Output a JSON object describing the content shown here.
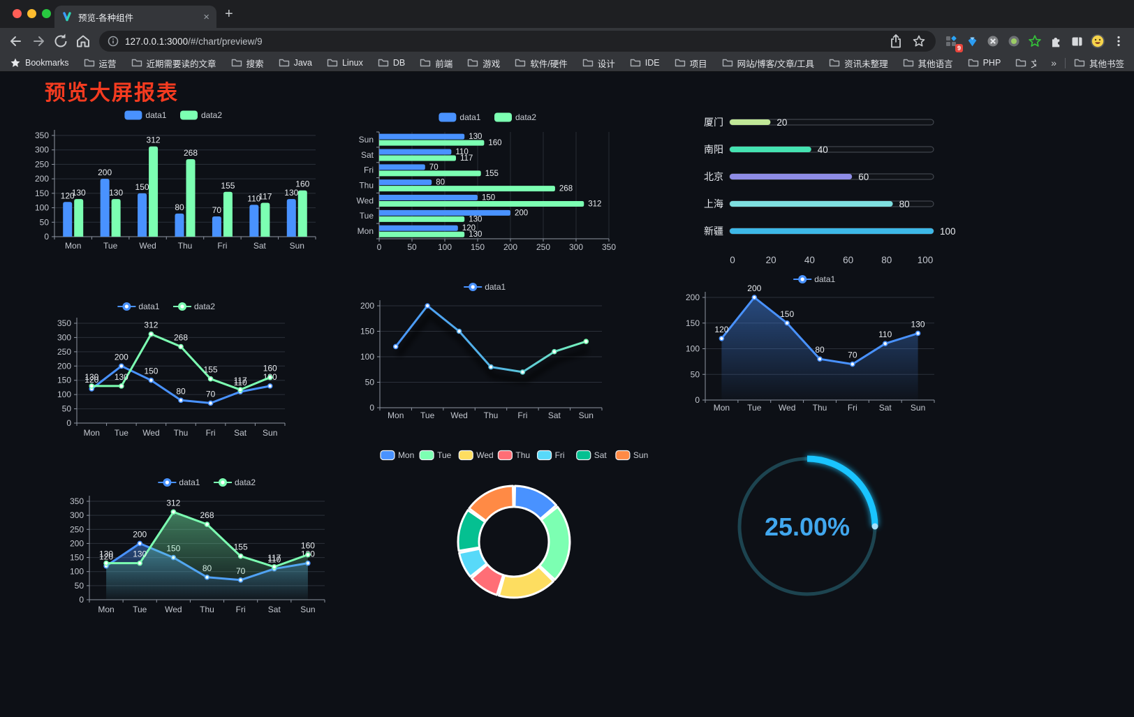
{
  "browser": {
    "tab": {
      "title": "预览-各种组件",
      "close_label": "×",
      "new_tab_label": "+"
    },
    "url": {
      "host": "127.0.0.1:3000",
      "path": "/#/chart/preview/9"
    },
    "extension_badge": "9",
    "bookmarks_bar": {
      "root_label": "Bookmarks",
      "folders": [
        "运营",
        "近期需要读的文章",
        "搜索",
        "Java",
        "Linux",
        "DB",
        "前端",
        "游戏",
        "软件/硬件",
        "设计",
        "IDE",
        "项目",
        "网站/博客/文章/工具",
        "资讯未整理",
        "其他语言",
        "PHP",
        "文件服务器"
      ],
      "overflow_label": "»",
      "other_bookmarks_label": "其他书签"
    }
  },
  "page": {
    "title": "预览大屏报表",
    "title_color": "#f43b20",
    "background": "#0d1016"
  },
  "palette": {
    "data1_blue": "#4992ff",
    "data2_green": "#7cffb2",
    "yellow": "#fddd60",
    "red": "#ff6e76",
    "light_blue": "#58d9f9",
    "teal": "#05c091",
    "orange": "#ff8a45"
  },
  "chart_data": [
    {
      "id": "c1",
      "type": "bar",
      "categories": [
        "Mon",
        "Tue",
        "Wed",
        "Thu",
        "Fri",
        "Sat",
        "Sun"
      ],
      "series": [
        {
          "name": "data1",
          "color": "#4992ff",
          "values": [
            120,
            200,
            150,
            80,
            70,
            110,
            130
          ]
        },
        {
          "name": "data2",
          "color": "#7cffb2",
          "values": [
            130,
            130,
            312,
            268,
            155,
            117,
            160
          ]
        }
      ],
      "ylim": [
        0,
        350
      ],
      "ystep": 50,
      "legend": "rect",
      "value_labels": true
    },
    {
      "id": "c2",
      "type": "bar-horizontal",
      "categories": [
        "Mon",
        "Tue",
        "Wed",
        "Thu",
        "Fri",
        "Sat",
        "Sun"
      ],
      "category_order": "bottom-to-top",
      "series": [
        {
          "name": "data1",
          "color": "#4992ff",
          "values": [
            120,
            200,
            150,
            80,
            70,
            110,
            130
          ]
        },
        {
          "name": "data2",
          "color": "#7cffb2",
          "values": [
            130,
            130,
            312,
            268,
            155,
            117,
            160
          ]
        }
      ],
      "xlim": [
        0,
        350
      ],
      "xstep": 50,
      "legend": "rect",
      "value_labels": true
    },
    {
      "id": "c3",
      "type": "progress",
      "rows": [
        {
          "label": "厦门",
          "value": 20,
          "color": "#c0e797"
        },
        {
          "label": "南阳",
          "value": 40,
          "color": "#45e3b2"
        },
        {
          "label": "北京",
          "value": 60,
          "color": "#8e8ce6"
        },
        {
          "label": "上海",
          "value": 80,
          "color": "#7edfe0"
        },
        {
          "label": "新疆",
          "value": 100,
          "color": "#3db8e8"
        }
      ],
      "xlim": [
        0,
        100
      ],
      "xticks": [
        0,
        20,
        40,
        60,
        80,
        100
      ]
    },
    {
      "id": "c4",
      "type": "line",
      "categories": [
        "Mon",
        "Tue",
        "Wed",
        "Thu",
        "Fri",
        "Sat",
        "Sun"
      ],
      "series": [
        {
          "name": "data1",
          "color": "#4992ff",
          "values": [
            120,
            200,
            150,
            80,
            70,
            110,
            130
          ]
        },
        {
          "name": "data2",
          "color": "#7cffb2",
          "values": [
            130,
            130,
            312,
            268,
            155,
            117,
            160
          ]
        }
      ],
      "ylim": [
        0,
        350
      ],
      "ystep": 50,
      "legend": "circle",
      "value_labels": true
    },
    {
      "id": "c5",
      "type": "line",
      "categories": [
        "Mon",
        "Tue",
        "Wed",
        "Thu",
        "Fri",
        "Sat",
        "Sun"
      ],
      "series": [
        {
          "name": "data1",
          "color": "#4992ff",
          "color_gradient": [
            "#4992ff",
            "#7cffb2"
          ],
          "shadow": true,
          "values": [
            120,
            200,
            150,
            80,
            70,
            110,
            130
          ]
        }
      ],
      "ylim": [
        0,
        200
      ],
      "ystep": 50,
      "legend": "circle",
      "value_labels": false
    },
    {
      "id": "c6",
      "type": "line",
      "categories": [
        "Mon",
        "Tue",
        "Wed",
        "Thu",
        "Fri",
        "Sat",
        "Sun"
      ],
      "series": [
        {
          "name": "data1",
          "color": "#4992ff",
          "area": true,
          "values": [
            120,
            200,
            150,
            80,
            70,
            110,
            130
          ]
        }
      ],
      "ylim": [
        0,
        200
      ],
      "ystep": 50,
      "legend": "circle",
      "value_labels": true
    },
    {
      "id": "c7",
      "type": "line",
      "categories": [
        "Mon",
        "Tue",
        "Wed",
        "Thu",
        "Fri",
        "Sat",
        "Sun"
      ],
      "series": [
        {
          "name": "data1",
          "color": "#4992ff",
          "area": true,
          "values": [
            120,
            200,
            150,
            80,
            70,
            110,
            130
          ]
        },
        {
          "name": "data2",
          "color": "#7cffb2",
          "area": true,
          "values": [
            130,
            130,
            312,
            268,
            155,
            117,
            160
          ]
        }
      ],
      "ylim": [
        0,
        350
      ],
      "ystep": 50,
      "legend": "circle",
      "value_labels": true
    },
    {
      "id": "c8",
      "type": "pie",
      "items": [
        {
          "name": "Mon",
          "value": 120,
          "color": "#4992ff"
        },
        {
          "name": "Tue",
          "value": 200,
          "color": "#7cffb2"
        },
        {
          "name": "Wed",
          "value": 150,
          "color": "#fddd60"
        },
        {
          "name": "Thu",
          "value": 80,
          "color": "#ff6e76"
        },
        {
          "name": "Fri",
          "value": 70,
          "color": "#58d9f9"
        },
        {
          "name": "Sat",
          "value": 110,
          "color": "#05c091"
        },
        {
          "name": "Sun",
          "value": 130,
          "color": "#ff8a45"
        }
      ],
      "legend": "rect-bordered"
    },
    {
      "id": "c9",
      "type": "gauge",
      "value_percent": 25,
      "label": "25.00%",
      "progress_color": "#1ac4ff",
      "track_color": "#1d4450",
      "text_color": "#41a7ee"
    }
  ]
}
